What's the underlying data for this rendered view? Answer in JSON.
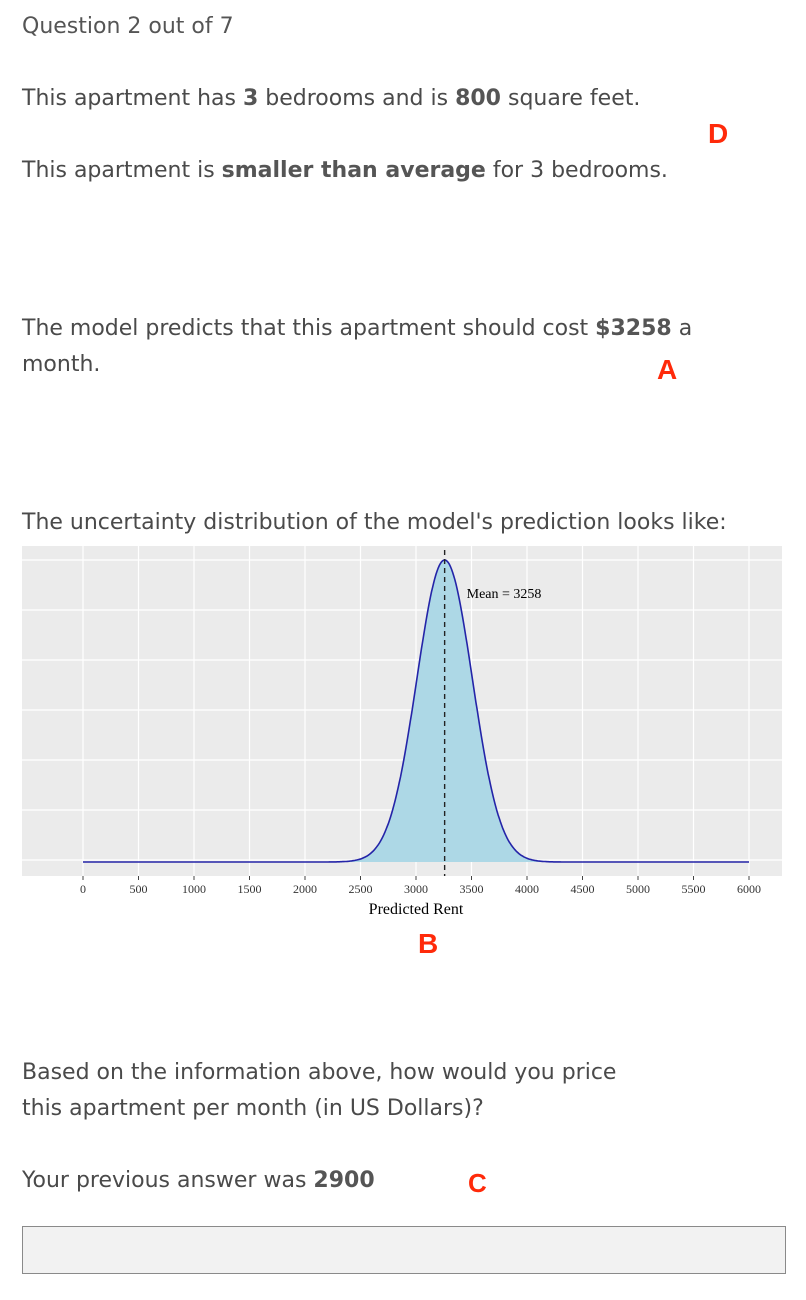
{
  "question": {
    "counter": "Question 2 out of 7"
  },
  "apartment": {
    "line1_pre": "This apartment has ",
    "bedrooms": "3",
    "line1_mid": " bedrooms and is ",
    "sqft": "800",
    "line1_post": " square feet.",
    "line2_pre": "This apartment is ",
    "size_compare": "smaller than average",
    "line2_post": " for 3 bedrooms."
  },
  "prediction": {
    "pre": "The model predicts that this apartment should cost ",
    "value": "$3258",
    "post_a": " a",
    "post_b": "month."
  },
  "uncertainty_intro": "The uncertainty distribution of the model's prediction looks like:",
  "markers": {
    "a": "A",
    "b": "B",
    "c": "C",
    "d": "D"
  },
  "prompt": {
    "line1": "Based on the information above, how would you price",
    "line2": "this apartment per month (in US Dollars)?"
  },
  "previous": {
    "label": "Your previous answer was ",
    "value": "2900"
  },
  "answer": {
    "value": ""
  },
  "chart_data": {
    "type": "area",
    "xlabel": "Predicted Rent",
    "ylabel": "",
    "xlim": [
      0,
      6000
    ],
    "x_ticks": [
      0,
      500,
      1000,
      1500,
      2000,
      2500,
      3000,
      3500,
      4000,
      4500,
      5000,
      5500,
      6000
    ],
    "tick_labels": [
      "0",
      "500",
      "1000",
      "1500",
      "2000",
      "2500",
      "3000",
      "3500",
      "4000",
      "4500",
      "5000",
      "5500",
      "6000"
    ],
    "mean": 3258,
    "sd": 250,
    "mean_label": "Mean = 3258",
    "grid": true,
    "fill_color": "#add8e6",
    "line_color": "#2424a8"
  }
}
